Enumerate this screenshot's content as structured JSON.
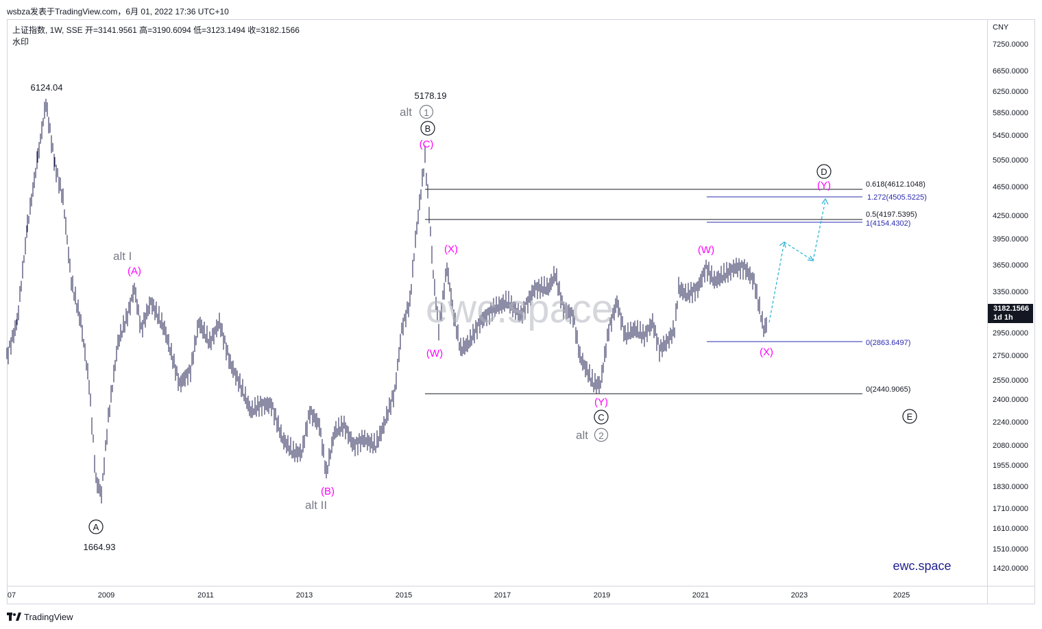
{
  "header": {
    "attribution": "wsbza发表于TradingView.com，6月 01, 2022 17:36 UTC+10"
  },
  "legend": {
    "line1": "上证指数, 1W, SSE  开=3141.9561 高=3190.6094 低=3123.1494 收=3182.1566",
    "line2": "水印"
  },
  "price_scale": {
    "currency": "CNY",
    "last_price": "3182.1566",
    "countdown": "1d 1h",
    "ticks": [
      "7250.0000",
      "6650.0000",
      "6250.0000",
      "5850.0000",
      "5450.0000",
      "5050.0000",
      "4650.0000",
      "4250.0000",
      "3950.0000",
      "3650.0000",
      "3350.0000",
      "3182.1566",
      "2950.0000",
      "2750.0000",
      "2550.0000",
      "2400.0000",
      "2240.0000",
      "2080.0000",
      "1955.0000",
      "1830.0000",
      "1710.0000",
      "1610.0000",
      "1510.0000",
      "1420.0000"
    ]
  },
  "time_scale": {
    "ticks": [
      "07",
      "2009",
      "2011",
      "2013",
      "2015",
      "2017",
      "2019",
      "2021",
      "2023",
      "2025"
    ]
  },
  "annotations": {
    "high_2007": "6124.04",
    "low_2008": "1664.93",
    "high_2015": "5178.19",
    "alt1_text": "alt",
    "alt1_circle": "1",
    "alt2_text": "alt",
    "alt2_circle": "2",
    "alt_I": "alt I",
    "alt_II": "alt II",
    "A": "A",
    "B": "B",
    "C": "C",
    "D": "D",
    "E": "E",
    "pA": "(A)",
    "pB": "(B)",
    "pC": "(C)",
    "pW1": "(W)",
    "pX1": "(X)",
    "pY1": "(Y)",
    "pW2": "(W)",
    "pX2": "(X)",
    "pY2": "(Y)"
  },
  "fib_levels": {
    "f0618": "0.618(4612.1048)",
    "f1272": "1.272(4505.5225)",
    "f05": "0.5(4197.5395)",
    "f1": "1(4154.4302)",
    "f0_top": "0(2863.6497)",
    "f0_bottom": "0(2440.9065)"
  },
  "watermark": "ewc.space",
  "brand": "ewc.space",
  "footer": {
    "logo_text": "TradingView"
  },
  "colors": {
    "magenta": "#ff00ff",
    "gray_label": "#787b86",
    "bars": "#1a1a4e",
    "blue_line": "#2a2ab0",
    "projection": "#29b6d6",
    "brand": "#1f1f8f"
  }
}
